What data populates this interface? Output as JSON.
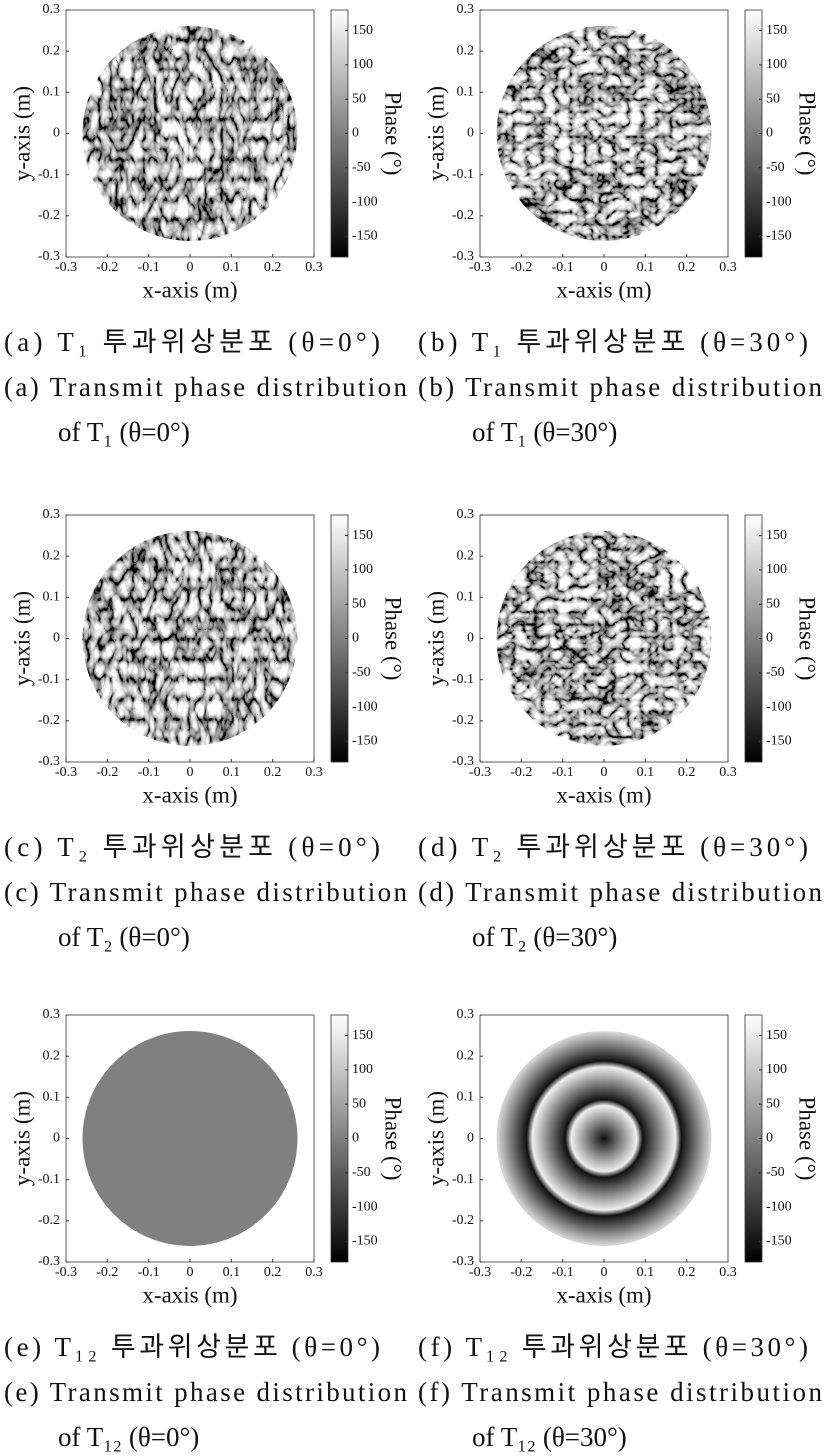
{
  "chart_data": [
    {
      "type": "heatmap",
      "xlabel": "x-axis (m)",
      "ylabel": "y-axis (m)",
      "xlim": [
        -0.3,
        0.3
      ],
      "ylim": [
        -0.3,
        0.3
      ],
      "xticks": [
        -0.3,
        -0.2,
        -0.1,
        0,
        0.1,
        0.2,
        0.3
      ],
      "yticks": [
        -0.3,
        -0.2,
        -0.1,
        0,
        0.1,
        0.2,
        0.3
      ],
      "colorbar_label": "Phase (°)",
      "clim": [
        -180,
        180
      ],
      "cticks": [
        -150,
        -100,
        -50,
        0,
        50,
        100,
        150
      ],
      "colormap": "gray",
      "caption_ko": "(a) T₁ 투과위상분포 (θ=0°)",
      "caption_en": [
        "(a) Transmit phase distribution",
        "of T₁ (θ=0°)"
      ]
    },
    {
      "type": "heatmap",
      "xlabel": "x-axis (m)",
      "ylabel": "y-axis (m)",
      "xlim": [
        -0.3,
        0.3
      ],
      "ylim": [
        -0.3,
        0.3
      ],
      "xticks": [
        -0.3,
        -0.2,
        -0.1,
        0,
        0.1,
        0.2,
        0.3
      ],
      "yticks": [
        -0.3,
        -0.2,
        -0.1,
        0,
        0.1,
        0.2,
        0.3
      ],
      "colorbar_label": "Phase (°)",
      "clim": [
        -180,
        180
      ],
      "cticks": [
        -150,
        -100,
        -50,
        0,
        50,
        100,
        150
      ],
      "colormap": "gray",
      "caption_ko": "(b) T₁ 투과위상분포 (θ=30°)",
      "caption_en": [
        "(b) Transmit phase distribution",
        "of T₁ (θ=30°)"
      ]
    },
    {
      "type": "heatmap",
      "xlabel": "x-axis (m)",
      "ylabel": "y-axis (m)",
      "xlim": [
        -0.3,
        0.3
      ],
      "ylim": [
        -0.3,
        0.3
      ],
      "xticks": [
        -0.3,
        -0.2,
        -0.1,
        0,
        0.1,
        0.2,
        0.3
      ],
      "yticks": [
        -0.3,
        -0.2,
        -0.1,
        0,
        0.1,
        0.2,
        0.3
      ],
      "colorbar_label": "Phase (°)",
      "clim": [
        -180,
        180
      ],
      "cticks": [
        -150,
        -100,
        -50,
        0,
        50,
        100,
        150
      ],
      "colormap": "gray",
      "caption_ko": "(c) T₂ 투과위상분포 (θ=0°)",
      "caption_en": [
        "(c) Transmit phase distribution",
        "of T₂ (θ=0°)"
      ]
    },
    {
      "type": "heatmap",
      "xlabel": "x-axis (m)",
      "ylabel": "y-axis (m)",
      "xlim": [
        -0.3,
        0.3
      ],
      "ylim": [
        -0.3,
        0.3
      ],
      "xticks": [
        -0.3,
        -0.2,
        -0.1,
        0,
        0.1,
        0.2,
        0.3
      ],
      "yticks": [
        -0.3,
        -0.2,
        -0.1,
        0,
        0.1,
        0.2,
        0.3
      ],
      "colorbar_label": "Phase (°)",
      "clim": [
        -180,
        180
      ],
      "cticks": [
        -150,
        -100,
        -50,
        0,
        50,
        100,
        150
      ],
      "colormap": "gray",
      "caption_ko": "(d) T₂ 투과위상분포 (θ=30°)",
      "caption_en": [
        "(d) Transmit phase distribution",
        "of T₂ (θ=30°)"
      ]
    },
    {
      "type": "heatmap",
      "xlabel": "x-axis (m)",
      "ylabel": "y-axis (m)",
      "xlim": [
        -0.3,
        0.3
      ],
      "ylim": [
        -0.3,
        0.3
      ],
      "xticks": [
        -0.3,
        -0.2,
        -0.1,
        0,
        0.1,
        0.2,
        0.3
      ],
      "yticks": [
        -0.3,
        -0.2,
        -0.1,
        0,
        0.1,
        0.2,
        0.3
      ],
      "colorbar_label": "Phase (°)",
      "clim": [
        -180,
        180
      ],
      "cticks": [
        -150,
        -100,
        -50,
        0,
        50,
        100,
        150
      ],
      "colormap": "gray",
      "caption_ko": "(e) T₁₂ 투과위상분포 (θ=0°)",
      "caption_en": [
        "(e) Transmit phase distribution",
        "of T₁₂ (θ=0°)"
      ]
    },
    {
      "type": "heatmap",
      "xlabel": "x-axis (m)",
      "ylabel": "y-axis (m)",
      "xlim": [
        -0.3,
        0.3
      ],
      "ylim": [
        -0.3,
        0.3
      ],
      "xticks": [
        -0.3,
        -0.2,
        -0.1,
        0,
        0.1,
        0.2,
        0.3
      ],
      "yticks": [
        -0.3,
        -0.2,
        -0.1,
        0,
        0.1,
        0.2,
        0.3
      ],
      "colorbar_label": "Phase (°)",
      "clim": [
        -180,
        180
      ],
      "cticks": [
        -150,
        -100,
        -50,
        0,
        50,
        100,
        150
      ],
      "colormap": "gray",
      "caption_ko": "(f) T₁₂ 투과위상분포 (θ=30°)",
      "caption_en": [
        "(f) Transmit phase distribution",
        "of T₁₂ (θ=30°)"
      ]
    }
  ]
}
